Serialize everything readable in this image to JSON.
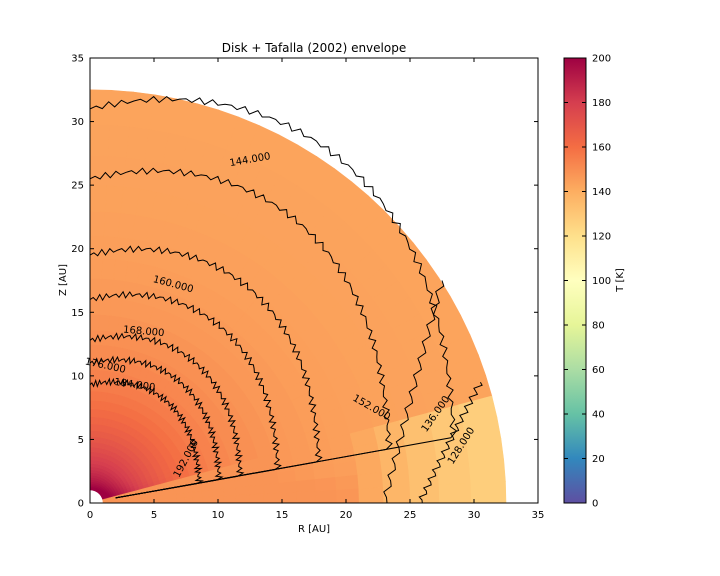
{
  "chart_data": {
    "type": "heatmap",
    "title": "Disk + Tafalla (2002) envelope",
    "xlabel": "R [AU]",
    "ylabel": "Z [AU]",
    "xlim": [
      0,
      35
    ],
    "ylim": [
      0,
      35
    ],
    "xticks": [
      0,
      5,
      10,
      15,
      20,
      25,
      30,
      35
    ],
    "yticks": [
      0,
      5,
      10,
      15,
      20,
      25,
      30,
      35
    ],
    "grid": false,
    "domain": {
      "shape": "quarter-annulus",
      "r_inner": 1.0,
      "r_outer": 32.5
    },
    "colorbar": {
      "label": "T [K]",
      "colormap": "Spectral_r",
      "range": [
        0,
        200
      ],
      "ticks": [
        0,
        20,
        40,
        60,
        80,
        100,
        120,
        140,
        160,
        180,
        200
      ],
      "colors": [
        "#5e4fa2",
        "#3288bd",
        "#66c2a5",
        "#abdda4",
        "#e6f598",
        "#ffffbf",
        "#fee08b",
        "#fdae61",
        "#f46d43",
        "#d53e4f",
        "#9e0142"
      ]
    },
    "contours": [
      {
        "level": 192,
        "label": "192.000"
      },
      {
        "level": 184,
        "label": "184.000"
      },
      {
        "level": 176,
        "label": "176.000"
      },
      {
        "level": 168,
        "label": "168.000"
      },
      {
        "level": 160,
        "label": "160.000"
      },
      {
        "level": 152,
        "label": "152.000"
      },
      {
        "level": 144,
        "label": "144.000"
      },
      {
        "level": 136,
        "label": "136.000"
      },
      {
        "level": 128,
        "label": "128.000"
      }
    ]
  }
}
